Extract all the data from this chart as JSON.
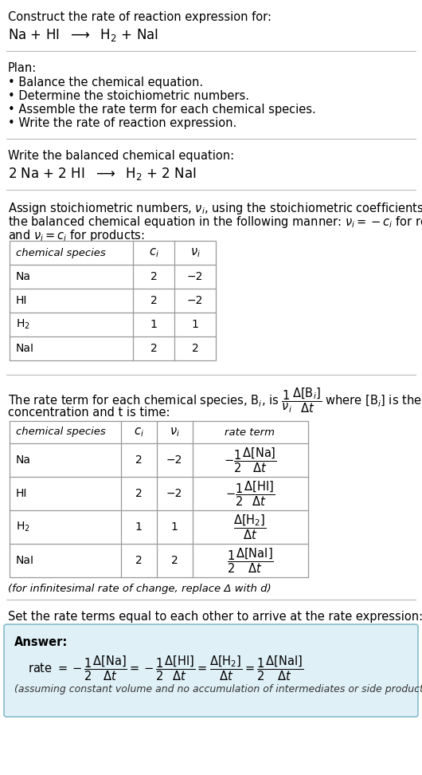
{
  "title_line1": "Construct the rate of reaction expression for:",
  "plan_header": "Plan:",
  "plan_items": [
    "• Balance the chemical equation.",
    "• Determine the stoichiometric numbers.",
    "• Assemble the rate term for each chemical species.",
    "• Write the rate of reaction expression."
  ],
  "balanced_header": "Write the balanced chemical equation:",
  "assign_text1": "Assign stoichiometric numbers, ν_i, using the stoichiometric coefficients, c_i, from",
  "assign_text2": "the balanced chemical equation in the following manner: ν_i = −c_i for reactants",
  "assign_text3": "and ν_i = c_i for products:",
  "table1_headers": [
    "chemical species",
    "c_i",
    "ν_i"
  ],
  "table1_rows": [
    [
      "Na",
      "2",
      "−2"
    ],
    [
      "HI",
      "2",
      "−2"
    ],
    [
      "H2",
      "1",
      "1"
    ],
    [
      "NaI",
      "2",
      "2"
    ]
  ],
  "rate_text2": "concentration and t is time:",
  "table2_headers": [
    "chemical species",
    "c_i",
    "ν_i",
    "rate term"
  ],
  "table2_rows": [
    [
      "Na",
      "2",
      "−2"
    ],
    [
      "HI",
      "2",
      "−2"
    ],
    [
      "H2",
      "1",
      "1"
    ],
    [
      "NaI",
      "2",
      "2"
    ]
  ],
  "infinitesimal_note": "(for infinitesimal rate of change, replace Δ with d)",
  "set_equal_text": "Set the rate terms equal to each other to arrive at the rate expression:",
  "answer_box_color": "#dff0f7",
  "answer_label": "Answer:",
  "assuming_note": "(assuming constant volume and no accumulation of intermediates or side products)",
  "bg_color": "#ffffff",
  "text_color": "#000000",
  "table_border_color": "#999999"
}
